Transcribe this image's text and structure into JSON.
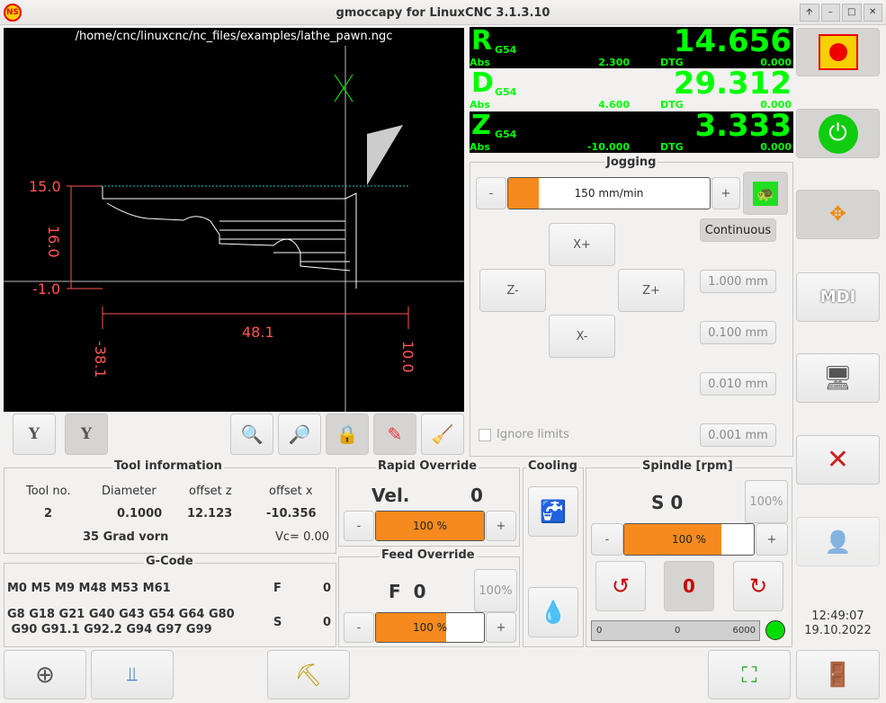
{
  "window": {
    "title": "gmoccapy for LinuxCNC  3.1.3.10",
    "controls": [
      "🡩",
      "–",
      "□",
      "✕"
    ]
  },
  "preview": {
    "file": "/home/cnc/linuxcnc/nc_files/examples/lathe_pawn.ngc",
    "dims": {
      "top": "15.0",
      "mid": "16.0",
      "bottom": "-1.0",
      "width": "48.1",
      "left": "-38.1",
      "right": "10.0"
    }
  },
  "preview_buttons": [
    "Y",
    "Y"
  ],
  "dro": [
    {
      "axis": "R",
      "coord": "G54",
      "value": "14.656",
      "abs_label": "Abs",
      "abs": "2.300",
      "dtg_label": "DTG",
      "dtg": "0.000"
    },
    {
      "axis": "D",
      "coord": "G54",
      "value": "29.312",
      "abs_label": "Abs",
      "abs": "4.600",
      "dtg_label": "DTG",
      "dtg": "0.000"
    },
    {
      "axis": "Z",
      "coord": "G54",
      "value": "3.333",
      "abs_label": "Abs",
      "abs": "-10.000",
      "dtg_label": "DTG",
      "dtg": "0.000"
    }
  ],
  "jogging": {
    "title": "Jogging",
    "minus": "-",
    "plus": "+",
    "speed": "150 mm/min",
    "speed_fraction": 0.15,
    "xplus": "X+",
    "xminus": "X-",
    "zplus": "Z+",
    "zminus": "Z-",
    "ignore_limits": "Ignore limits",
    "increments": [
      "Continuous",
      "1.000 mm",
      "0.100 mm",
      "0.010 mm",
      "0.001 mm"
    ]
  },
  "tool": {
    "title": "Tool information",
    "headers": [
      "Tool no.",
      "Diameter",
      "offset z",
      "offset x"
    ],
    "values": [
      "2",
      "0.1000",
      "12.123",
      "-10.356"
    ],
    "description": "35 Grad vorn",
    "vc": "Vc= 0.00"
  },
  "gcode": {
    "title": "G-Code",
    "mcodes": "M0 M5 M9 M48 M53 M61",
    "gcodes1": "G8 G18 G21 G40 G43 G54 G64 G80",
    "gcodes2": " G90 G91.1 G92.2 G94 G97 G99",
    "f_label": "F",
    "f": "0",
    "s_label": "S",
    "s": "0"
  },
  "rapid": {
    "title": "Rapid Override",
    "vel_label": "Vel.",
    "vel": "0",
    "percent": "100 %",
    "fraction": 1.0
  },
  "feed": {
    "title": "Feed Override",
    "f_label": "F  0",
    "reset": "100%",
    "percent": "100 %",
    "fraction": 0.65
  },
  "cooling": {
    "title": "Cooling"
  },
  "spindle": {
    "title": "Spindle [rpm]",
    "s": "S 0",
    "reset": "100%",
    "percent": "100 %",
    "fraction": 0.75,
    "gauge": [
      "0",
      "0",
      "6000"
    ],
    "led_color": "#00dd00"
  },
  "clock": {
    "time": "12:49:07",
    "date": "19.10.2022"
  },
  "side_buttons": [
    "emergency-stop",
    "power-on",
    "manual-jog",
    "MDI",
    "auto",
    "settings",
    "user-tabs"
  ],
  "colors": {
    "dro_text": "#00ff00",
    "orange": "#f68a1e",
    "dim": "#ff4040"
  }
}
